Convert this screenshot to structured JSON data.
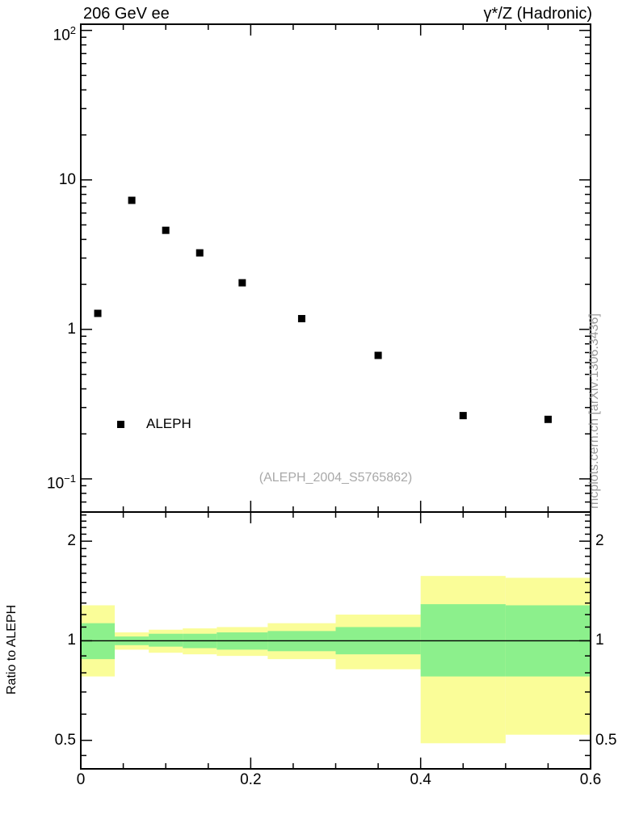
{
  "header": {
    "left": "206 GeV ee",
    "right": "γ*/Z (Hadronic)"
  },
  "right_margin_text": "mcplots.cern.ch [arXiv:1306.3436]",
  "watermark": "(ALEPH_2004_S5765862)",
  "ratio_axis_label": "Ratio to ALEPH",
  "legend": {
    "label": "ALEPH"
  },
  "colors": {
    "band_outer": "#fafd98",
    "band_inner": "#8cf08c",
    "marker": "#000000",
    "frame": "#000000",
    "muted_text": "#9a9a9a"
  },
  "chart_data": [
    {
      "type": "scatter",
      "panel": "main",
      "title": "206 GeV ee",
      "title_right": "γ*/Z (Hadronic)",
      "series_name": "ALEPH",
      "marker": "filled-square",
      "x_values": [
        0.02,
        0.06,
        0.1,
        0.14,
        0.19,
        0.26,
        0.35,
        0.45,
        0.55
      ],
      "y_values": [
        1.28,
        7.3,
        4.6,
        3.25,
        2.05,
        1.18,
        0.67,
        0.265,
        0.25
      ],
      "xlim": [
        0,
        0.6
      ],
      "ylim": [
        0.06,
        110
      ],
      "yscale": "log",
      "yticks": [
        {
          "v": 100,
          "base": "10",
          "exp": "2"
        },
        {
          "v": 10,
          "base": "10",
          "exp": null
        },
        {
          "v": 1,
          "base": "1",
          "exp": null
        },
        {
          "v": 0.1,
          "base": "10",
          "exp": "−1"
        }
      ],
      "xticks": [
        {
          "v": 0,
          "label": "0"
        },
        {
          "v": 0.2,
          "label": "0.2"
        },
        {
          "v": 0.4,
          "label": "0.4"
        },
        {
          "v": 0.6,
          "label": "0.6"
        }
      ],
      "x_minor_step": 0.05,
      "grid": false,
      "legend_position": "inside-left-lower"
    },
    {
      "type": "band-ratio",
      "panel": "ratio",
      "ylabel": "Ratio to ALEPH",
      "reference_line": 1,
      "xlim": [
        0,
        0.6
      ],
      "ylim": [
        0.41,
        2.45
      ],
      "yscale": "log",
      "yticks": [
        {
          "v": 2,
          "label": "2"
        },
        {
          "v": 1,
          "label": "1"
        },
        {
          "v": 0.5,
          "label": "0.5"
        }
      ],
      "y_minor": [
        0.45,
        0.6,
        0.7,
        0.8,
        0.9,
        1.1,
        1.2,
        1.3,
        1.4,
        1.5,
        1.6,
        1.7,
        1.8,
        1.9,
        2.1,
        2.2,
        2.3,
        2.4
      ],
      "xticks": [
        {
          "v": 0,
          "label": "0"
        },
        {
          "v": 0.2,
          "label": "0.2"
        },
        {
          "v": 0.4,
          "label": "0.4"
        },
        {
          "v": 0.6,
          "label": "0.6"
        }
      ],
      "x_minor_step": 0.05,
      "bin_edges": [
        0,
        0.04,
        0.08,
        0.12,
        0.16,
        0.22,
        0.3,
        0.4,
        0.5,
        0.6
      ],
      "outer_band": [
        [
          0.78,
          1.28
        ],
        [
          0.94,
          1.06
        ],
        [
          0.92,
          1.08
        ],
        [
          0.91,
          1.09
        ],
        [
          0.9,
          1.1
        ],
        [
          0.88,
          1.13
        ],
        [
          0.82,
          1.2
        ],
        [
          0.49,
          1.57
        ],
        [
          0.52,
          1.55
        ]
      ],
      "inner_band": [
        [
          0.88,
          1.13
        ],
        [
          0.97,
          1.03
        ],
        [
          0.96,
          1.05
        ],
        [
          0.95,
          1.05
        ],
        [
          0.94,
          1.06
        ],
        [
          0.93,
          1.07
        ],
        [
          0.91,
          1.1
        ],
        [
          0.78,
          1.29
        ],
        [
          0.78,
          1.28
        ]
      ]
    }
  ]
}
